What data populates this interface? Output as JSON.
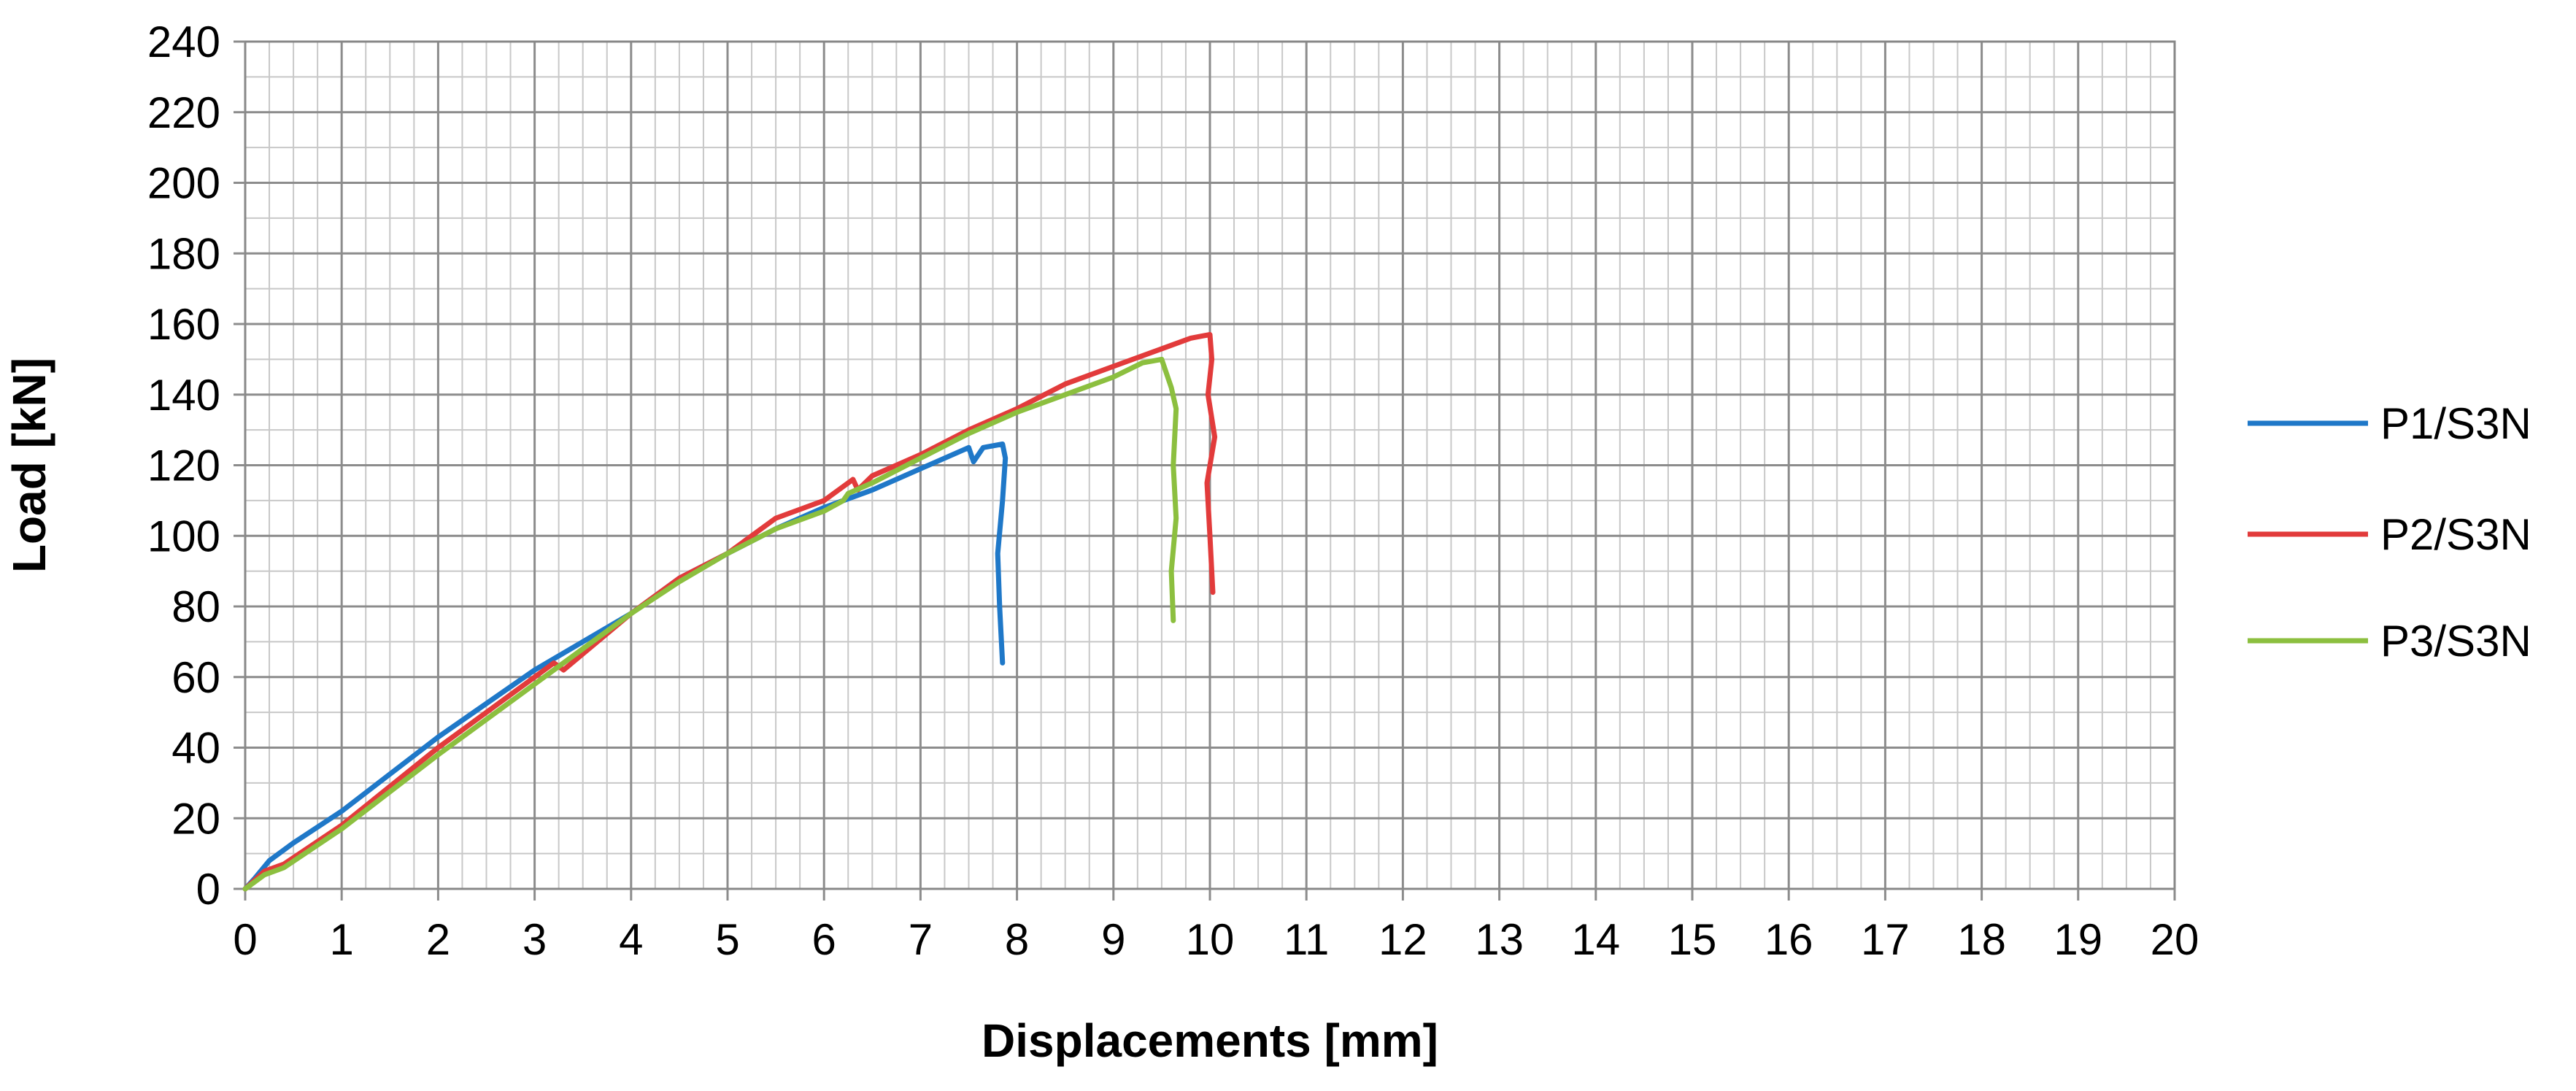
{
  "chart_data": {
    "type": "line",
    "title": "",
    "xlabel": "Displacements [mm]",
    "ylabel": "Load [kN]",
    "xlim": [
      0,
      20
    ],
    "ylim": [
      0,
      240
    ],
    "x_ticks": [
      0,
      1,
      2,
      3,
      4,
      5,
      6,
      7,
      8,
      9,
      10,
      11,
      12,
      13,
      14,
      15,
      16,
      17,
      18,
      19,
      20
    ],
    "y_ticks": [
      0,
      20,
      40,
      60,
      80,
      100,
      120,
      140,
      160,
      180,
      200,
      220,
      240
    ],
    "grid": true,
    "minor_grid": {
      "x_step": 0.25,
      "y_step": 10
    },
    "legend_position": "right",
    "series": [
      {
        "name": "P1/S3N",
        "color": "#1F78C8",
        "points": [
          [
            0,
            0
          ],
          [
            0.1,
            3
          ],
          [
            0.25,
            8
          ],
          [
            0.5,
            13
          ],
          [
            1,
            22
          ],
          [
            2,
            43
          ],
          [
            3,
            62
          ],
          [
            3.5,
            70
          ],
          [
            4,
            78
          ],
          [
            4.5,
            88
          ],
          [
            5,
            95
          ],
          [
            5.5,
            102
          ],
          [
            6,
            108
          ],
          [
            6.5,
            113
          ],
          [
            7,
            119
          ],
          [
            7.5,
            125
          ],
          [
            7.55,
            121
          ],
          [
            7.65,
            125
          ],
          [
            7.85,
            126
          ],
          [
            7.88,
            122
          ],
          [
            7.85,
            110
          ],
          [
            7.8,
            95
          ],
          [
            7.82,
            80
          ],
          [
            7.85,
            64
          ]
        ]
      },
      {
        "name": "P2/S3N",
        "color": "#E23B3B",
        "points": [
          [
            0,
            0
          ],
          [
            0.2,
            5
          ],
          [
            0.4,
            7
          ],
          [
            1,
            18
          ],
          [
            2,
            40
          ],
          [
            3,
            60
          ],
          [
            3.2,
            64
          ],
          [
            3.3,
            62
          ],
          [
            4,
            78
          ],
          [
            4.5,
            88
          ],
          [
            5,
            95
          ],
          [
            5.5,
            105
          ],
          [
            6,
            110
          ],
          [
            6.3,
            116
          ],
          [
            6.35,
            113
          ],
          [
            6.5,
            117
          ],
          [
            7,
            123
          ],
          [
            7.5,
            130
          ],
          [
            8,
            136
          ],
          [
            8.5,
            143
          ],
          [
            9,
            148
          ],
          [
            9.5,
            153
          ],
          [
            9.8,
            156
          ],
          [
            10,
            157
          ],
          [
            10.02,
            150
          ],
          [
            9.98,
            140
          ],
          [
            10.05,
            128
          ],
          [
            9.97,
            115
          ],
          [
            10,
            100
          ],
          [
            10.03,
            84
          ]
        ]
      },
      {
        "name": "P3/S3N",
        "color": "#8CBF3F",
        "points": [
          [
            0,
            0
          ],
          [
            0.2,
            4
          ],
          [
            0.4,
            6
          ],
          [
            1,
            17
          ],
          [
            2,
            38
          ],
          [
            3,
            58
          ],
          [
            3.5,
            68
          ],
          [
            4,
            78
          ],
          [
            4.5,
            87
          ],
          [
            5,
            95
          ],
          [
            5.5,
            102
          ],
          [
            6,
            107
          ],
          [
            6.2,
            110
          ],
          [
            6.25,
            112
          ],
          [
            6.5,
            115
          ],
          [
            7,
            122
          ],
          [
            7.5,
            129
          ],
          [
            8,
            135
          ],
          [
            8.5,
            140
          ],
          [
            9,
            145
          ],
          [
            9.3,
            149
          ],
          [
            9.5,
            150
          ],
          [
            9.6,
            142
          ],
          [
            9.65,
            136
          ],
          [
            9.62,
            120
          ],
          [
            9.65,
            105
          ],
          [
            9.6,
            90
          ],
          [
            9.62,
            76
          ]
        ]
      }
    ]
  }
}
